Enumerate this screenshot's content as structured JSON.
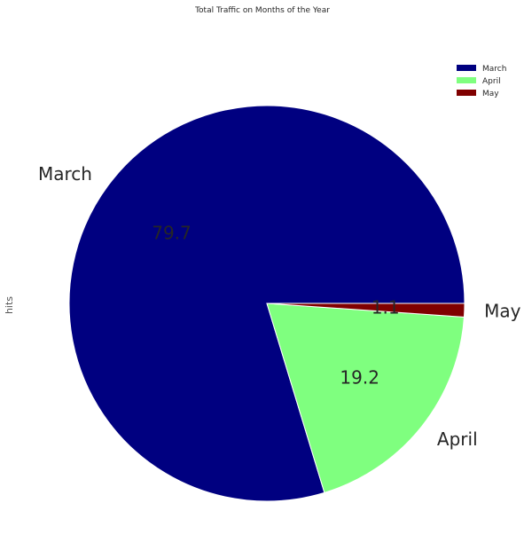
{
  "chart_data": {
    "type": "pie",
    "title": "Total Traffic on Months of the Year",
    "ylabel": "hits",
    "categories": [
      "March",
      "April",
      "May"
    ],
    "values": [
      79.7,
      19.2,
      1.1
    ],
    "percent_labels": [
      "79.7",
      "19.2",
      "1.1"
    ],
    "colors": [
      "#000080",
      "#7fff7f",
      "#800000"
    ],
    "legend": {
      "position": "top-right",
      "entries": [
        "March",
        "April",
        "May"
      ]
    },
    "start_angle": 0,
    "direction": "counterclockwise"
  }
}
